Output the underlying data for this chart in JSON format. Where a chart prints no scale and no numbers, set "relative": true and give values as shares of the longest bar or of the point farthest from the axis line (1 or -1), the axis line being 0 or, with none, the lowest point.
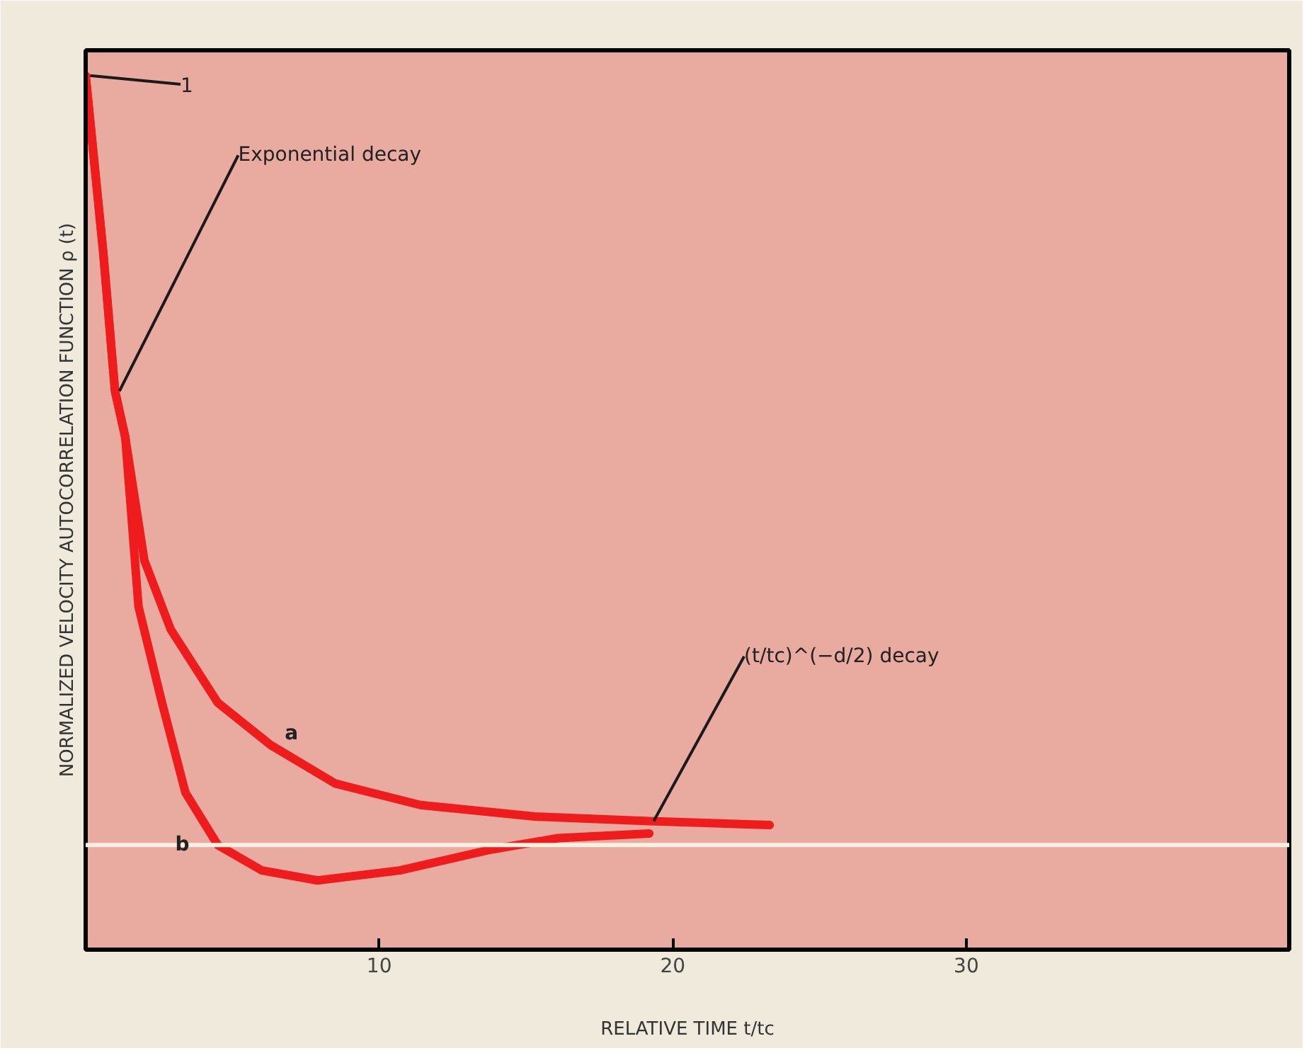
{
  "chart_data": {
    "type": "line",
    "relative": true,
    "xlabel": "RELATIVE TIME t/tc",
    "ylabel": "NORMALIZED VELOCITY AUTOCORRELATION FUNCTION ρ (t)",
    "xlim": [
      0,
      41
    ],
    "xticks": [
      10,
      20,
      30
    ],
    "grid": false,
    "marker": "none",
    "line_style": "solid",
    "series": [
      {
        "name": "a",
        "color": "#ee1c1c",
        "x": [
          0,
          0.6,
          1.0,
          1.35,
          2.0,
          2.9,
          4.5,
          6.3,
          8.5,
          11.4,
          15.3,
          19.2,
          23.3
        ],
        "values": [
          1,
          0.77,
          0.59,
          0.53,
          0.37,
          0.28,
          0.185,
          0.13,
          0.08,
          0.052,
          0.037,
          0.031,
          0.026
        ]
      },
      {
        "name": "b",
        "color": "#ee1c1c",
        "x": [
          0,
          0.6,
          1.0,
          1.35,
          1.8,
          2.6,
          3.4,
          4.5,
          6.0,
          7.9,
          10.7,
          13.8,
          16.1,
          19.2
        ],
        "values": [
          1,
          0.77,
          0.59,
          0.53,
          0.31,
          0.185,
          0.068,
          0,
          -0.033,
          -0.046,
          -0.033,
          -0.006,
          0.009,
          0.015
        ]
      }
    ],
    "ref_lines": [
      {
        "axis": "y",
        "value": 0,
        "color": "#f7f1e1"
      }
    ],
    "annotations": [
      {
        "text": "1",
        "x": 0,
        "y": 1
      },
      {
        "text": "Exponential decay",
        "x": 1.0,
        "y": 0.59
      },
      {
        "text": "(t/tc)^(−d/2)  decay",
        "x": 19.2,
        "y": 0.031
      }
    ]
  }
}
